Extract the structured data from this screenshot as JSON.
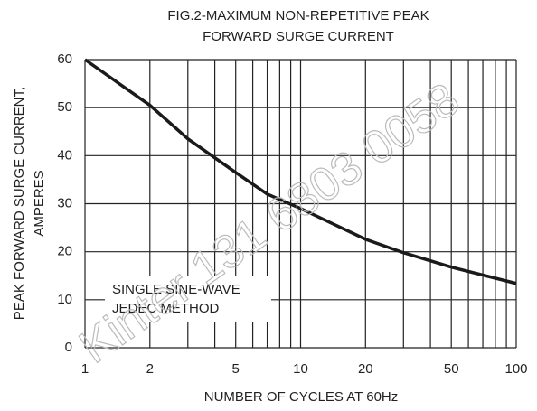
{
  "chart_data": {
    "type": "line",
    "title": [
      "FIG.2-MAXIMUM  NON-REPETITIVE PEAK",
      "FORWARD SURGE CURRENT"
    ],
    "ylabel": [
      "PEAK FORWARD SURGE CURRENT,",
      "AMPERES"
    ],
    "xlabel": "NUMBER OF CYCLES AT 60Hz",
    "annotation": [
      "SINGLE SINE-WAVE",
      "JEDEC METHOD"
    ],
    "watermark": "Kinter 131 6803 0058",
    "xscale": "log",
    "xlim": [
      1,
      100
    ],
    "ylim": [
      0,
      60
    ],
    "xticks": [
      1,
      2,
      5,
      10,
      20,
      50,
      100
    ],
    "xminor": [
      3,
      4,
      6,
      7,
      8,
      9,
      30,
      40,
      60,
      70,
      80,
      90
    ],
    "yticks": [
      0,
      10,
      20,
      30,
      40,
      50,
      60
    ],
    "grid": true,
    "color": "#1a1a1a",
    "series": [
      {
        "x": [
          1,
          2,
          3,
          5,
          7,
          10,
          20,
          30,
          50,
          100
        ],
        "values": [
          60,
          50.5,
          43.5,
          36.5,
          32,
          29,
          22.6,
          19.8,
          16.8,
          13.4
        ]
      }
    ]
  }
}
